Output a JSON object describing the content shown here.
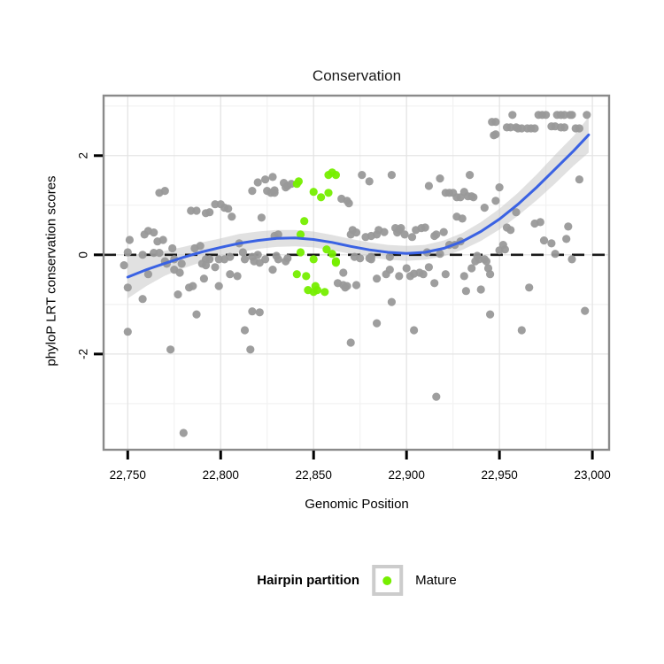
{
  "title": "Conservation",
  "axes": {
    "x_label": "Genomic Position",
    "y_label": "phyloP LRT conservation scores",
    "x_domain": [
      22737,
      23009
    ],
    "y_domain": [
      -3.93,
      3.21
    ],
    "x_ticks": [
      22750,
      22800,
      22850,
      22900,
      22950,
      23000
    ],
    "x_tick_labels": [
      "22,750",
      "22,800",
      "22,850",
      "22,900",
      "22,950",
      "23,000"
    ],
    "x_minor": [
      22775,
      22825,
      22875,
      22925,
      22975
    ],
    "y_ticks": [
      2,
      0,
      -2
    ],
    "y_tick_labels": [
      "2",
      "0",
      "-2"
    ],
    "y_minor": [
      3,
      1,
      -1,
      -3
    ],
    "grid": true
  },
  "legend": {
    "title": "Hairpin partition",
    "items": [
      {
        "label": "Mature",
        "color": "#76EE00"
      }
    ]
  },
  "colors": {
    "background": "#FFFFFF",
    "point_gray": "#999999",
    "point_green": "#76EE00",
    "smooth_blue": "#3A62E3",
    "ribbon": "#C9C9C9",
    "grid_major": "#E4E4E4",
    "grid_minor": "#F2F2F2",
    "panel_border": "#8A8A8A",
    "zero_line": "#1A1A1A",
    "tick": "#000000"
  },
  "chart_data": {
    "type": "scatter",
    "title": "Conservation",
    "xlabel": "Genomic Position",
    "ylabel": "phyloP LRT conservation scores",
    "hline": {
      "y": 0,
      "style": "dashed"
    },
    "series": [
      {
        "name": "background",
        "color": "#999999",
        "points": [
          [
            22748,
            -0.21
          ],
          [
            22750,
            -0.66
          ],
          [
            22750,
            0.05
          ],
          [
            22751,
            0.3
          ],
          [
            22750,
            -1.55
          ],
          [
            22758,
            0
          ],
          [
            22759,
            0.41
          ],
          [
            22761,
            0.48
          ],
          [
            22764,
            0.45
          ],
          [
            22764,
            0.04
          ],
          [
            22766,
            0.27
          ],
          [
            22767,
            0.04
          ],
          [
            22769,
            0.3
          ],
          [
            22767,
            1.25
          ],
          [
            22770,
            1.29
          ],
          [
            22770,
            -0.13
          ],
          [
            22771,
            -0.18
          ],
          [
            22758,
            -0.89
          ],
          [
            22761,
            -0.39
          ],
          [
            22773,
            -1.91
          ],
          [
            22774,
            0.13
          ],
          [
            22775,
            -0.09
          ],
          [
            22775,
            -0.3
          ],
          [
            22777,
            -0.8
          ],
          [
            22778,
            -0.36
          ],
          [
            22779,
            -0.18
          ],
          [
            22780,
            -3.59
          ],
          [
            22783,
            -0.66
          ],
          [
            22784,
            0.89
          ],
          [
            22785,
            -0.63
          ],
          [
            22786,
            0.13
          ],
          [
            22787,
            0.89
          ],
          [
            22787,
            -1.2
          ],
          [
            22789,
            0.18
          ],
          [
            22790,
            -0.18
          ],
          [
            22791,
            -0.48
          ],
          [
            22792,
            0.84
          ],
          [
            22792,
            -0.09
          ],
          [
            22792,
            -0.21
          ],
          [
            22794,
            0.86
          ],
          [
            22794,
            -0.09
          ],
          [
            22797,
            1.02
          ],
          [
            22797,
            -0.25
          ],
          [
            22799,
            -0.09
          ],
          [
            22799,
            -0.63
          ],
          [
            22800,
            1.02
          ],
          [
            22802,
            0.95
          ],
          [
            22802,
            -0.09
          ],
          [
            22804,
            0.93
          ],
          [
            22805,
            -0.04
          ],
          [
            22805,
            -0.39
          ],
          [
            22806,
            0.77
          ],
          [
            22809,
            -0.43
          ],
          [
            22810,
            0.23
          ],
          [
            22812,
            0.05
          ],
          [
            22813,
            -1.52
          ],
          [
            22813,
            -0.09
          ],
          [
            22816,
            -1.91
          ],
          [
            22817,
            1.29
          ],
          [
            22817,
            -0.04
          ],
          [
            22817,
            -1.14
          ],
          [
            22818,
            -0.13
          ],
          [
            22820,
            1.46
          ],
          [
            22820,
            0
          ],
          [
            22821,
            -0.16
          ],
          [
            22821,
            -1.16
          ],
          [
            22822,
            0.75
          ],
          [
            22824,
            -0.09
          ],
          [
            22824,
            1.52
          ],
          [
            22825,
            1.29
          ],
          [
            22827,
            1.25
          ],
          [
            22828,
            1.57
          ],
          [
            22828,
            -0.3
          ],
          [
            22829,
            1.3
          ],
          [
            22829,
            1.25
          ],
          [
            22829,
            0.38
          ],
          [
            22830,
            -0.02
          ],
          [
            22831,
            -0.09
          ],
          [
            22831,
            0.41
          ],
          [
            22834,
            1.45
          ],
          [
            22835,
            1.36
          ],
          [
            22836,
            1.39
          ],
          [
            22836,
            -0.07
          ],
          [
            22838,
            1.43
          ],
          [
            22835,
            -0.13
          ],
          [
            22865,
            1.13
          ],
          [
            22868,
            1.09
          ],
          [
            22869,
            1.04
          ],
          [
            22870,
            0.41
          ],
          [
            22871,
            0.5
          ],
          [
            22873,
            0.45
          ],
          [
            22872,
            -0.04
          ],
          [
            22875,
            -0.07
          ],
          [
            22876,
            1.61
          ],
          [
            22878,
            0.36
          ],
          [
            22880,
            1.48
          ],
          [
            22880,
            -0.07
          ],
          [
            22881,
            -0.04
          ],
          [
            22881,
            0.38
          ],
          [
            22881,
            -0.09
          ],
          [
            22884,
            0.41
          ],
          [
            22884,
            -0.48
          ],
          [
            22884,
            -1.38
          ],
          [
            22885,
            0.5
          ],
          [
            22888,
            0.46
          ],
          [
            22889,
            -0.39
          ],
          [
            22891,
            -0.04
          ],
          [
            22891,
            -0.3
          ],
          [
            22892,
            -0.95
          ],
          [
            22892,
            1.61
          ],
          [
            22894,
            0.54
          ],
          [
            22895,
            0.45
          ],
          [
            22896,
            -0.43
          ],
          [
            22863,
            -0.57
          ],
          [
            22866,
            -0.61
          ],
          [
            22868,
            -0.63
          ],
          [
            22873,
            -0.61
          ],
          [
            22866,
            -0.36
          ],
          [
            22867,
            -0.66
          ],
          [
            22870,
            -1.77
          ],
          [
            22896,
            0.5
          ],
          [
            22897,
            0.54
          ],
          [
            22899,
            0.41
          ],
          [
            22900,
            -0.27
          ],
          [
            22902,
            -0.43
          ],
          [
            22903,
            0.36
          ],
          [
            22904,
            -0.38
          ],
          [
            22904,
            -1.52
          ],
          [
            22905,
            0.5
          ],
          [
            22907,
            -0.36
          ],
          [
            22908,
            0.54
          ],
          [
            22909,
            -0.39
          ],
          [
            22910,
            0.55
          ],
          [
            22911,
            0.05
          ],
          [
            22912,
            1.39
          ],
          [
            22912,
            -0.25
          ],
          [
            22915,
            0.38
          ],
          [
            22915,
            -0.57
          ],
          [
            22916,
            0.41
          ],
          [
            22916,
            -2.86
          ],
          [
            22918,
            1.54
          ],
          [
            22918,
            0.02
          ],
          [
            22920,
            0.46
          ],
          [
            22921,
            1.25
          ],
          [
            22921,
            -0.39
          ],
          [
            22923,
            1.25
          ],
          [
            22923,
            0.2
          ],
          [
            22925,
            1.25
          ],
          [
            22926,
            0.2
          ],
          [
            22927,
            1.16
          ],
          [
            22927,
            0.77
          ],
          [
            22929,
            1.16
          ],
          [
            22929,
            0.27
          ],
          [
            22930,
            0.73
          ],
          [
            22931,
            1.27
          ],
          [
            22931,
            -0.43
          ],
          [
            22932,
            -0.73
          ],
          [
            22933,
            1.18
          ],
          [
            22934,
            1.61
          ],
          [
            22935,
            1.18
          ],
          [
            22935,
            -0.27
          ],
          [
            22936,
            1.16
          ],
          [
            22937,
            -0.13
          ],
          [
            22938,
            -0.02
          ],
          [
            22939,
            -0.09
          ],
          [
            22940,
            -0.7
          ],
          [
            22942,
            0.95
          ],
          [
            22942,
            -0.09
          ],
          [
            22943,
            -0.13
          ],
          [
            22944,
            -0.27
          ],
          [
            22945,
            -0.39
          ],
          [
            22945,
            -1.2
          ],
          [
            22946,
            2.68
          ],
          [
            22947,
            2.41
          ],
          [
            22948,
            2.68
          ],
          [
            22948,
            2.43
          ],
          [
            22948,
            1.09
          ],
          [
            22950,
            1.36
          ],
          [
            22950,
            0.09
          ],
          [
            22952,
            0.2
          ],
          [
            22953,
            0.11
          ],
          [
            22954,
            2.57
          ],
          [
            22954,
            0.55
          ],
          [
            22956,
            2.57
          ],
          [
            22956,
            0.5
          ],
          [
            22957,
            2.82
          ],
          [
            22959,
            2.57
          ],
          [
            22959,
            0.86
          ],
          [
            22960,
            2.55
          ],
          [
            22962,
            2.55
          ],
          [
            22965,
            2.55
          ],
          [
            22967,
            2.55
          ],
          [
            22969,
            2.55
          ],
          [
            22962,
            -1.52
          ],
          [
            22966,
            -0.66
          ],
          [
            22969,
            0.63
          ],
          [
            22971,
            2.82
          ],
          [
            22973,
            2.82
          ],
          [
            22975,
            2.82
          ],
          [
            22972,
            0.66
          ],
          [
            22974,
            0.29
          ],
          [
            22978,
            0.23
          ],
          [
            22978,
            2.59
          ],
          [
            22980,
            2.59
          ],
          [
            22980,
            0.02
          ],
          [
            22981,
            2.82
          ],
          [
            22983,
            2.82
          ],
          [
            22985,
            2.82
          ],
          [
            22988,
            2.82
          ],
          [
            22989,
            2.82
          ],
          [
            22983,
            2.57
          ],
          [
            22985,
            2.57
          ],
          [
            22986,
            0.32
          ],
          [
            22987,
            0.57
          ],
          [
            22989,
            -0.09
          ],
          [
            22991,
            2.55
          ],
          [
            22993,
            2.55
          ],
          [
            22993,
            1.52
          ],
          [
            22996,
            -1.13
          ],
          [
            22997,
            2.82
          ]
        ]
      },
      {
        "name": "Mature",
        "color": "#76EE00",
        "points": [
          [
            22841,
            1.43
          ],
          [
            22842,
            1.48
          ],
          [
            22850,
            1.27
          ],
          [
            22854,
            1.16
          ],
          [
            22858,
            1.25
          ],
          [
            22858,
            1.61
          ],
          [
            22860,
            1.66
          ],
          [
            22862,
            1.61
          ],
          [
            22845,
            0.68
          ],
          [
            22843,
            0.41
          ],
          [
            22843,
            0.05
          ],
          [
            22850,
            -0.09
          ],
          [
            22857,
            0.11
          ],
          [
            22860,
            0.02
          ],
          [
            22862,
            -0.13
          ],
          [
            22841,
            -0.39
          ],
          [
            22846,
            -0.43
          ],
          [
            22847,
            -0.71
          ],
          [
            22850,
            -0.75
          ],
          [
            22851,
            -0.63
          ],
          [
            22852,
            -0.71
          ],
          [
            22856,
            -0.75
          ],
          [
            22862,
            -0.16
          ]
        ]
      }
    ],
    "smooth": {
      "name": "loess fit",
      "color": "#3A62E3",
      "line": [
        [
          22750,
          -0.45
        ],
        [
          22760,
          -0.3
        ],
        [
          22770,
          -0.17
        ],
        [
          22780,
          -0.05
        ],
        [
          22790,
          0.06
        ],
        [
          22800,
          0.15
        ],
        [
          22810,
          0.23
        ],
        [
          22820,
          0.29
        ],
        [
          22830,
          0.33
        ],
        [
          22840,
          0.34
        ],
        [
          22850,
          0.31
        ],
        [
          22860,
          0.25
        ],
        [
          22870,
          0.17
        ],
        [
          22880,
          0.1
        ],
        [
          22890,
          0.05
        ],
        [
          22900,
          0.03
        ],
        [
          22910,
          0.05
        ],
        [
          22920,
          0.13
        ],
        [
          22930,
          0.27
        ],
        [
          22940,
          0.47
        ],
        [
          22950,
          0.72
        ],
        [
          22960,
          1.02
        ],
        [
          22970,
          1.36
        ],
        [
          22980,
          1.73
        ],
        [
          22990,
          2.1
        ],
        [
          22998,
          2.42
        ]
      ],
      "ribbon": [
        [
          22750,
          -0.88,
          -0.02
        ],
        [
          22760,
          -0.63,
          0.03
        ],
        [
          22770,
          -0.42,
          0.08
        ],
        [
          22780,
          -0.27,
          0.16
        ],
        [
          22790,
          -0.14,
          0.25
        ],
        [
          22800,
          -0.04,
          0.33
        ],
        [
          22810,
          0.05,
          0.42
        ],
        [
          22820,
          0.12,
          0.47
        ],
        [
          22830,
          0.16,
          0.5
        ],
        [
          22840,
          0.17,
          0.5
        ],
        [
          22850,
          0.15,
          0.47
        ],
        [
          22860,
          0.09,
          0.4
        ],
        [
          22870,
          0.02,
          0.32
        ],
        [
          22880,
          -0.05,
          0.25
        ],
        [
          22890,
          -0.1,
          0.2
        ],
        [
          22900,
          -0.12,
          0.18
        ],
        [
          22910,
          -0.1,
          0.2
        ],
        [
          22920,
          -0.03,
          0.29
        ],
        [
          22930,
          0.1,
          0.44
        ],
        [
          22940,
          0.28,
          0.66
        ],
        [
          22950,
          0.51,
          0.93
        ],
        [
          22960,
          0.79,
          1.25
        ],
        [
          22970,
          1.1,
          1.62
        ],
        [
          22980,
          1.44,
          2.02
        ],
        [
          22990,
          1.8,
          2.4
        ],
        [
          22998,
          2.06,
          2.78
        ]
      ]
    }
  }
}
